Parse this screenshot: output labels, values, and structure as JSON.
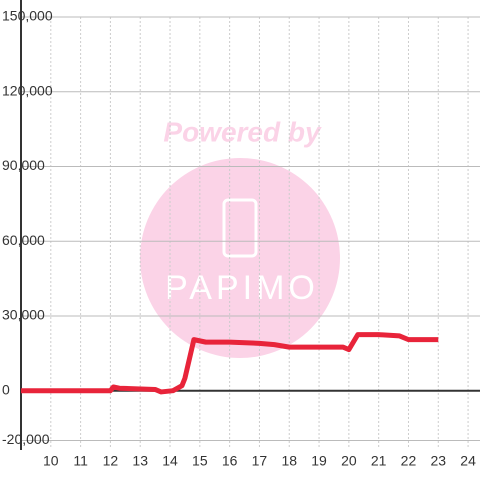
{
  "chart_data": {
    "type": "line",
    "watermark_top": "Powered by",
    "watermark_logo": "PAPIMO",
    "x": [
      9,
      12.0,
      12.1,
      12.3,
      13.5,
      13.7,
      14.1,
      14.4,
      14.5,
      14.8,
      15.2,
      16,
      17,
      17.5,
      18,
      19,
      19.8,
      20.0,
      20.3,
      21,
      21.7,
      22,
      23
    ],
    "series": [
      {
        "color": "#e8243a",
        "values": [
          0,
          0,
          1500,
          1000,
          500,
          -500,
          0,
          2000,
          5000,
          20500,
          19500,
          19500,
          19000,
          18500,
          17500,
          17500,
          17500,
          16500,
          22500,
          22500,
          22000,
          20500,
          20500
        ]
      }
    ],
    "xlim": [
      9,
      24.4
    ],
    "ylim": [
      -23000,
      150000
    ],
    "xticks": [
      10,
      11,
      12,
      13,
      14,
      15,
      16,
      17,
      18,
      19,
      20,
      21,
      22,
      23,
      24
    ],
    "yticks": [
      {
        "value": -20000,
        "label": "-20,000"
      },
      0,
      {
        "value": 30000,
        "label": "30,000"
      },
      {
        "value": 60000,
        "label": "60,000"
      },
      {
        "value": 90000,
        "label": "90,000"
      },
      {
        "value": 120000,
        "label": "120,000"
      },
      {
        "value": 150000,
        "label": "150,000"
      }
    ],
    "grid": true
  }
}
